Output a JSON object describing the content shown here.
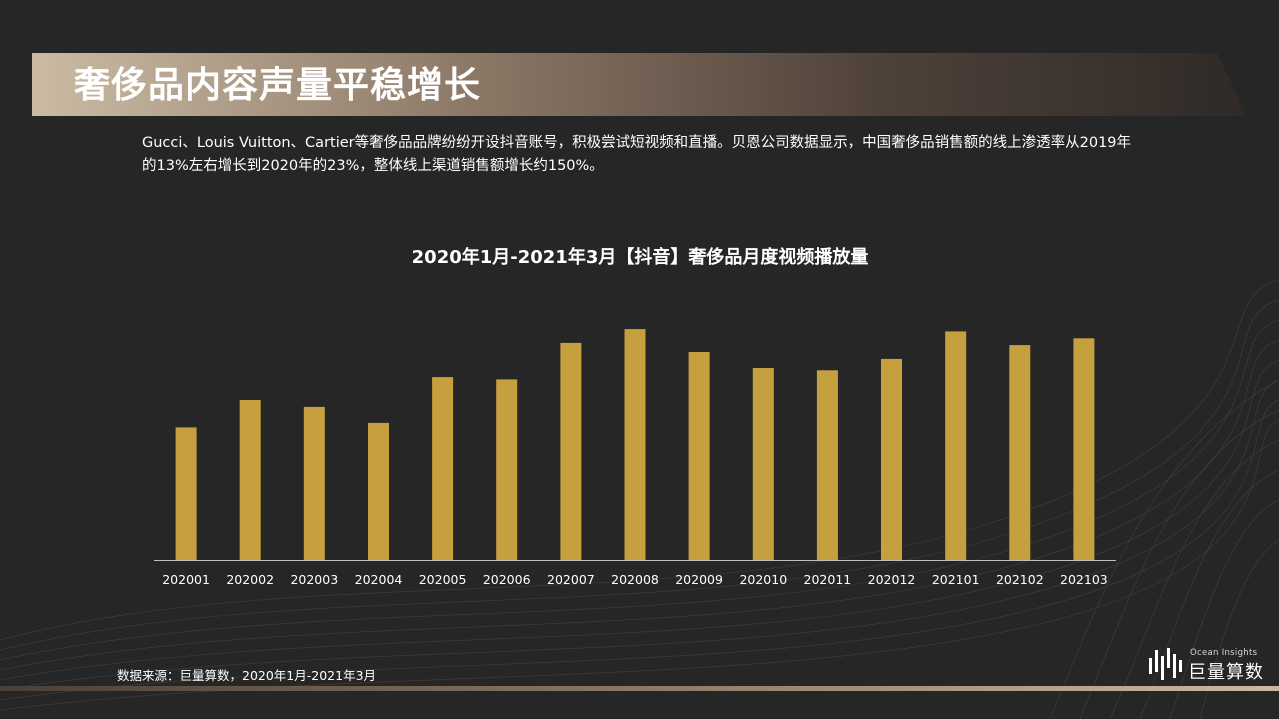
{
  "header": {
    "title": "奢侈品内容声量平稳增长"
  },
  "intro": {
    "text": "Gucci、Louis Vuitton、Cartier等奢侈品品牌纷纷开设抖音账号，积极尝试短视频和直播。贝恩公司数据显示，中国奢侈品销售额的线上渗透率从2019年的13%左右增长到2020年的23%，整体线上渠道销售额增长约150%。"
  },
  "chart_data": {
    "type": "bar",
    "title": "2020年1月-2021年3月【抖音】奢侈品月度视频播放量",
    "categories": [
      "202001",
      "202002",
      "202003",
      "202004",
      "202005",
      "202006",
      "202007",
      "202008",
      "202009",
      "202010",
      "202011",
      "202012",
      "202101",
      "202102",
      "202103"
    ],
    "values": [
      58,
      70,
      67,
      60,
      80,
      79,
      95,
      101,
      91,
      84,
      83,
      88,
      100,
      94,
      97
    ],
    "ylim": [
      0,
      105
    ],
    "grid": false,
    "bar_color": "#c6a03f",
    "axis_color": "#bfbfbf"
  },
  "footer": {
    "source": "数据来源：巨量算数，2020年1月-2021年3月"
  },
  "brand": {
    "sub": "Ocean Insights",
    "name": "巨量算数",
    "icon": "bar-waveform-logo"
  },
  "colors": {
    "background": "#262626",
    "accent_gold": "#c6a03f"
  }
}
